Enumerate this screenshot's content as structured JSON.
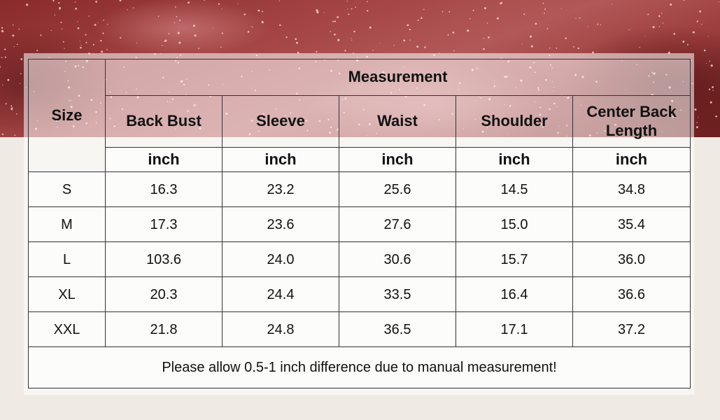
{
  "table": {
    "size_header": "Size",
    "group_header": "Measurement",
    "columns": [
      {
        "label": "Back Bust",
        "unit": "inch"
      },
      {
        "label": "Sleeve",
        "unit": "inch"
      },
      {
        "label": "Waist",
        "unit": "inch"
      },
      {
        "label": "Shoulder",
        "unit": "inch"
      },
      {
        "label": "Center Back Length",
        "unit": "inch"
      }
    ],
    "rows": [
      {
        "size": "S",
        "values": [
          "16.3",
          "23.2",
          "25.6",
          "14.5",
          "34.8"
        ]
      },
      {
        "size": "M",
        "values": [
          "17.3",
          "23.6",
          "27.6",
          "15.0",
          "35.4"
        ]
      },
      {
        "size": "L",
        "values": [
          "103.6",
          "24.0",
          "30.6",
          "15.7",
          "36.0"
        ]
      },
      {
        "size": "XL",
        "values": [
          "20.3",
          "24.4",
          "33.5",
          "16.4",
          "36.6"
        ]
      },
      {
        "size": "XXL",
        "values": [
          "21.8",
          "24.8",
          "36.5",
          "17.1",
          "37.2"
        ]
      }
    ],
    "note": "Please allow 0.5-1 inch difference due to manual measurement!"
  },
  "colors": {
    "fabric": "#a54545",
    "background": "#efebe4",
    "border": "#333333"
  }
}
